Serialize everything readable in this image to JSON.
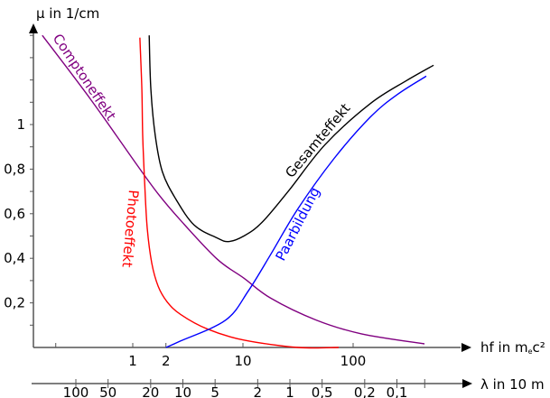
{
  "chart_data": {
    "type": "line",
    "title": "",
    "ylabel": "μ in 1/cm",
    "xlabel": "hf in mec²",
    "xlabel_sub": "e",
    "xscale": "log",
    "xlim": [
      0.125,
      1140
    ],
    "ylim": [
      0,
      1.44
    ],
    "y_ticks": [
      0.1,
      0.2,
      0.3,
      0.4,
      0.5,
      0.6,
      0.7,
      0.8,
      0.9,
      1.0,
      1.1,
      1.2,
      1.3,
      1.4
    ],
    "y_tick_labels": [
      {
        "value": 0.2,
        "label": "0,2"
      },
      {
        "value": 0.4,
        "label": "0,4"
      },
      {
        "value": 0.6,
        "label": "0,6"
      },
      {
        "value": 0.8,
        "label": "0,8"
      },
      {
        "value": 1.0,
        "label": "1"
      }
    ],
    "x_ticks": [
      0.2,
      1,
      2,
      10,
      100
    ],
    "x_tick_labels": [
      {
        "value": 1,
        "label": "1"
      },
      {
        "value": 2,
        "label": "2"
      },
      {
        "value": 10,
        "label": "10"
      },
      {
        "value": 100,
        "label": "100"
      }
    ],
    "secondary_axis": {
      "label": "λ in 10 m",
      "scale": "log-reversed",
      "ticks": [
        {
          "value": 100,
          "label": "100"
        },
        {
          "value": 50,
          "label": "50"
        },
        {
          "value": 20,
          "label": "20"
        },
        {
          "value": 10,
          "label": "10"
        },
        {
          "value": 5,
          "label": "5"
        },
        {
          "value": 2,
          "label": "2"
        },
        {
          "value": 1,
          "label": "1"
        },
        {
          "value": 0.5,
          "label": "0,5"
        },
        {
          "value": 0.2,
          "label": "0,2"
        },
        {
          "value": 0.1,
          "label": "0,1"
        },
        {
          "value": 0.055,
          "label": ""
        }
      ]
    },
    "series": [
      {
        "name": "Comptoneffekt",
        "color": "#800080",
        "x": [
          0.151,
          0.412,
          1.06,
          1.7,
          2.72,
          5.78,
          10.2,
          17.9,
          46.1,
          119,
          444
        ],
        "y": [
          1.4,
          1.115,
          0.828,
          0.689,
          0.57,
          0.398,
          0.311,
          0.221,
          0.123,
          0.061,
          0.016
        ]
      },
      {
        "name": "Photoeffekt",
        "color": "#ff0000",
        "x": [
          1.16,
          1.21,
          1.23,
          1.28,
          1.35,
          1.49,
          1.7,
          2.05,
          2.72,
          4.79,
          10.2,
          31.6,
          73.9
        ],
        "y": [
          1.39,
          1.156,
          0.951,
          0.746,
          0.541,
          0.377,
          0.275,
          0.205,
          0.148,
          0.082,
          0.033,
          0.0,
          0.0
        ]
      },
      {
        "name": "Gesamteffekt",
        "color": "#000000",
        "x": [
          1.41,
          1.46,
          1.6,
          1.86,
          2.47,
          3.61,
          5.78,
          7.39,
          10.2,
          14.9,
          26.2,
          55.7,
          143,
          305,
          537
        ],
        "y": [
          1.4,
          1.156,
          0.951,
          0.787,
          0.664,
          0.549,
          0.492,
          0.475,
          0.5,
          0.561,
          0.705,
          0.91,
          1.094,
          1.197,
          1.266
        ]
      },
      {
        "name": "Paarbildung",
        "color": "#0000ff",
        "x": [
          2.0,
          2.72,
          6.98,
          11.2,
          17.9,
          31.6,
          67.3,
          143,
          252,
          461
        ],
        "y": [
          0.0,
          0.029,
          0.123,
          0.254,
          0.418,
          0.623,
          0.848,
          1.033,
          1.135,
          1.217
        ]
      }
    ]
  }
}
